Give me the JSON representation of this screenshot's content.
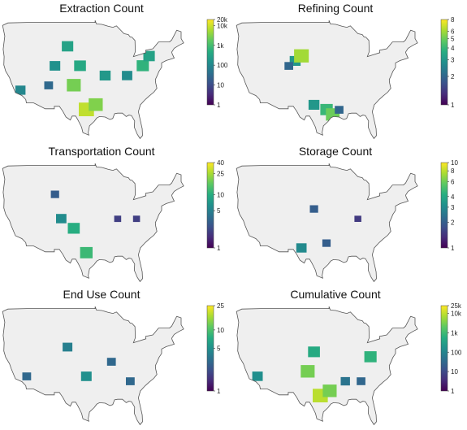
{
  "figure": {
    "panels": [
      {
        "id": "extraction",
        "title": "Extraction Count",
        "ticks": [
          "20k",
          "10k",
          "1k",
          "100",
          "10",
          "1"
        ],
        "tick_values": [
          20000,
          10000,
          1000,
          100,
          10,
          1
        ],
        "scale": "log",
        "domain": [
          1,
          20000
        ],
        "regions": [
          {
            "x": -102,
            "y": 36,
            "v": 2500
          },
          {
            "x": -98,
            "y": 31,
            "v": 8000
          },
          {
            "x": -100,
            "y": 40,
            "v": 400
          },
          {
            "x": -104,
            "y": 44,
            "v": 300
          },
          {
            "x": -108,
            "y": 40,
            "v": 150
          },
          {
            "x": -95,
            "y": 32,
            "v": 3000
          },
          {
            "x": -92,
            "y": 38,
            "v": 200
          },
          {
            "x": -85,
            "y": 38,
            "v": 120
          },
          {
            "x": -80,
            "y": 40,
            "v": 600
          },
          {
            "x": -78,
            "y": 42,
            "v": 300
          },
          {
            "x": -119,
            "y": 35,
            "v": 100
          },
          {
            "x": -110,
            "y": 36,
            "v": 30
          }
        ]
      },
      {
        "id": "refining",
        "title": "Refining Count",
        "ticks": [
          "8",
          "6",
          "5",
          "4",
          "3",
          "2",
          "1"
        ],
        "tick_values": [
          8,
          6,
          5,
          4,
          3,
          2,
          1
        ],
        "scale": "log",
        "domain": [
          1,
          8
        ],
        "regions": [
          {
            "x": -106,
            "y": 41,
            "v": 3
          },
          {
            "x": -104,
            "y": 42,
            "v": 6
          },
          {
            "x": -108,
            "y": 40,
            "v": 2
          },
          {
            "x": -96,
            "y": 31,
            "v": 4
          },
          {
            "x": -94,
            "y": 30,
            "v": 5
          },
          {
            "x": -100,
            "y": 32,
            "v": 3
          },
          {
            "x": -92,
            "y": 31,
            "v": 2
          }
        ]
      },
      {
        "id": "transportation",
        "title": "Transportation Count",
        "ticks": [
          "40",
          "25",
          "10",
          "5",
          "1"
        ],
        "tick_values": [
          40,
          25,
          10,
          5,
          1
        ],
        "scale": "log",
        "domain": [
          1,
          40
        ],
        "regions": [
          {
            "x": -102,
            "y": 36,
            "v": 10
          },
          {
            "x": -98,
            "y": 31,
            "v": 12
          },
          {
            "x": -106,
            "y": 38,
            "v": 6
          },
          {
            "x": -108,
            "y": 43,
            "v": 3
          },
          {
            "x": -88,
            "y": 38,
            "v": 2
          },
          {
            "x": -82,
            "y": 38,
            "v": 2
          }
        ]
      },
      {
        "id": "storage",
        "title": "Storage Count",
        "ticks": [
          "10",
          "8",
          "6",
          "4",
          "3",
          "2",
          "1"
        ],
        "tick_values": [
          10,
          8,
          6,
          4,
          3,
          2,
          1
        ],
        "scale": "log",
        "domain": [
          1,
          10
        ],
        "regions": [
          {
            "x": -100,
            "y": 40,
            "v": 2
          },
          {
            "x": -96,
            "y": 33,
            "v": 2
          },
          {
            "x": -104,
            "y": 32,
            "v": 3
          },
          {
            "x": -86,
            "y": 38,
            "v": 1.5
          }
        ]
      },
      {
        "id": "enduse",
        "title": "End Use Count",
        "ticks": [
          "25",
          "10",
          "5",
          "1"
        ],
        "tick_values": [
          25,
          10,
          5,
          1
        ],
        "scale": "log",
        "domain": [
          1,
          25
        ],
        "regions": [
          {
            "x": -104,
            "y": 41,
            "v": 4
          },
          {
            "x": -98,
            "y": 35,
            "v": 5
          },
          {
            "x": -90,
            "y": 38,
            "v": 3
          },
          {
            "x": -84,
            "y": 34,
            "v": 3
          },
          {
            "x": -117,
            "y": 35,
            "v": 3
          }
        ]
      },
      {
        "id": "cumulative",
        "title": "Cumulative Count",
        "ticks": [
          "25k",
          "10k",
          "1k",
          "100",
          "10",
          "1"
        ],
        "tick_values": [
          25000,
          10000,
          1000,
          100,
          10,
          1
        ],
        "scale": "log",
        "domain": [
          1,
          25000
        ],
        "regions": [
          {
            "x": -102,
            "y": 36,
            "v": 3000
          },
          {
            "x": -98,
            "y": 31,
            "v": 9000
          },
          {
            "x": -100,
            "y": 40,
            "v": 500
          },
          {
            "x": -95,
            "y": 32,
            "v": 3000
          },
          {
            "x": -82,
            "y": 39,
            "v": 700
          },
          {
            "x": -90,
            "y": 34,
            "v": 50
          },
          {
            "x": -85,
            "y": 34,
            "v": 30
          },
          {
            "x": -118,
            "y": 35,
            "v": 150
          }
        ]
      }
    ]
  }
}
